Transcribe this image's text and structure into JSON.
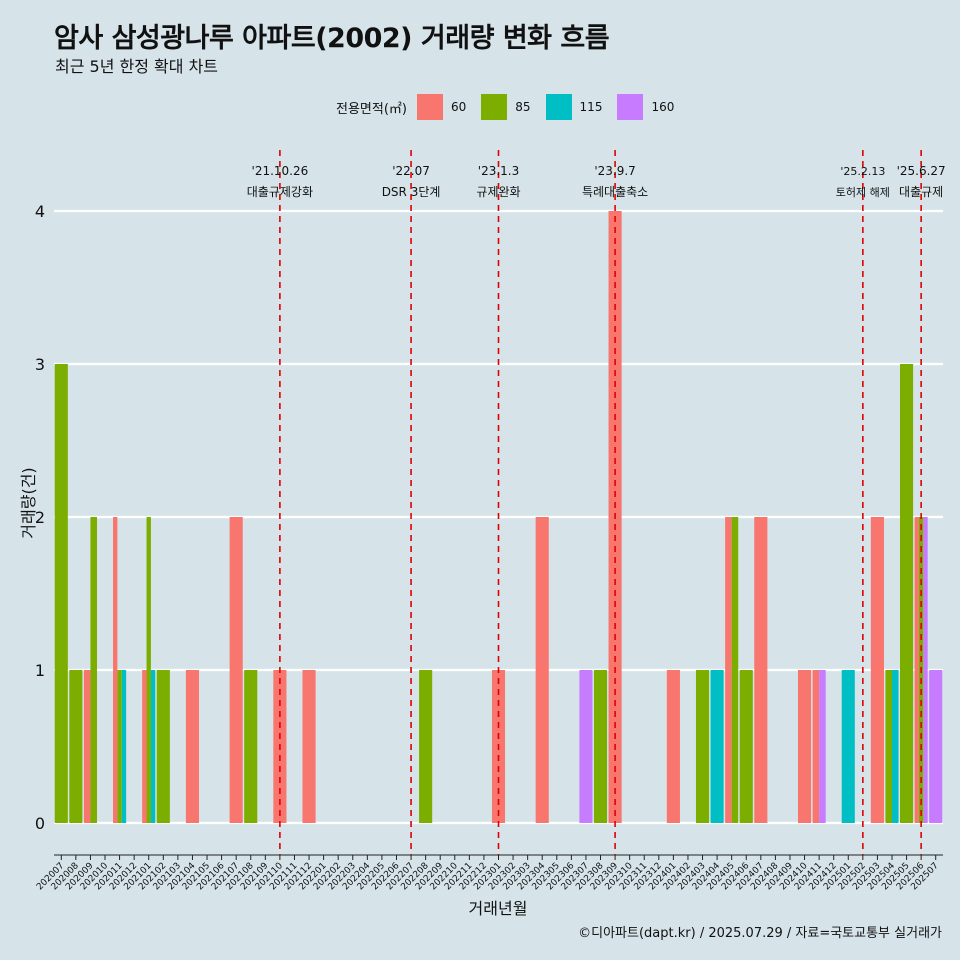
{
  "title": "암사 삼성광나루 아파트(2002) 거래량 변화 흐름",
  "subtitle": "최근 5년 한정 확대 차트",
  "caption": "©디아파트(dapt.kr) / 2025.07.29 / 자료=국토교통부 실거래가",
  "legend": {
    "title": "전용면적(㎡)",
    "position": "top",
    "items": [
      {
        "label": "60",
        "color": "#f8766d"
      },
      {
        "label": "85",
        "color": "#7cae00"
      },
      {
        "label": "115",
        "color": "#00bfc4"
      },
      {
        "label": "160",
        "color": "#c77cff"
      }
    ]
  },
  "chart_data": {
    "type": "bar",
    "stacking": "dodge",
    "title": "암사 삼성광나루 아파트(2002) 거래량 변화 흐름",
    "subtitle": "최근 5년 한정 확대 차트",
    "xlabel": "거래년월",
    "ylabel": "거래량(건)",
    "ylim": [
      0,
      4
    ],
    "yticks": [
      0,
      1,
      2,
      3,
      4
    ],
    "grid": "horizontal",
    "categories": [
      "202007",
      "202008",
      "202009",
      "202010",
      "202011",
      "202012",
      "202101",
      "202102",
      "202103",
      "202104",
      "202105",
      "202106",
      "202107",
      "202108",
      "202109",
      "202110",
      "202111",
      "202112",
      "202201",
      "202202",
      "202203",
      "202204",
      "202205",
      "202206",
      "202207",
      "202208",
      "202209",
      "202210",
      "202211",
      "202212",
      "202301",
      "202302",
      "202303",
      "202304",
      "202305",
      "202306",
      "202307",
      "202308",
      "202309",
      "202310",
      "202311",
      "202312",
      "202401",
      "202402",
      "202403",
      "202404",
      "202405",
      "202406",
      "202407",
      "202408",
      "202409",
      "202410",
      "202411",
      "202412",
      "202501",
      "202502",
      "202503",
      "202504",
      "202505",
      "202506",
      "202507"
    ],
    "series": [
      {
        "name": "60",
        "color": "#f8766d",
        "values": [
          0,
          0,
          1,
          0,
          2,
          0,
          1,
          0,
          0,
          1,
          0,
          0,
          2,
          0,
          0,
          1,
          0,
          1,
          0,
          0,
          0,
          0,
          0,
          0,
          0,
          0,
          0,
          0,
          0,
          0,
          1,
          0,
          0,
          2,
          0,
          0,
          0,
          0,
          4,
          0,
          0,
          0,
          1,
          0,
          0,
          0,
          2,
          0,
          2,
          0,
          0,
          1,
          1,
          0,
          0,
          0,
          2,
          0,
          0,
          2,
          0
        ]
      },
      {
        "name": "85",
        "color": "#7cae00",
        "values": [
          3,
          1,
          2,
          0,
          1,
          0,
          2,
          1,
          0,
          0,
          0,
          0,
          0,
          1,
          0,
          0,
          0,
          0,
          0,
          0,
          0,
          0,
          0,
          0,
          0,
          1,
          0,
          0,
          0,
          0,
          0,
          0,
          0,
          0,
          0,
          0,
          0,
          1,
          0,
          0,
          0,
          0,
          0,
          0,
          1,
          0,
          2,
          1,
          0,
          0,
          0,
          0,
          0,
          0,
          0,
          0,
          0,
          1,
          3,
          2,
          0
        ]
      },
      {
        "name": "115",
        "color": "#00bfc4",
        "values": [
          0,
          0,
          0,
          0,
          1,
          0,
          1,
          0,
          0,
          0,
          0,
          0,
          0,
          0,
          0,
          0,
          0,
          0,
          0,
          0,
          0,
          0,
          0,
          0,
          0,
          0,
          0,
          0,
          0,
          0,
          0,
          0,
          0,
          0,
          0,
          0,
          0,
          0,
          0,
          0,
          0,
          0,
          0,
          0,
          0,
          1,
          0,
          0,
          0,
          0,
          0,
          0,
          0,
          0,
          1,
          0,
          0,
          1,
          0,
          0,
          0
        ]
      },
      {
        "name": "160",
        "color": "#c77cff",
        "values": [
          0,
          0,
          0,
          0,
          0,
          0,
          0,
          0,
          0,
          0,
          0,
          0,
          0,
          0,
          0,
          0,
          0,
          0,
          0,
          0,
          0,
          0,
          0,
          0,
          0,
          0,
          0,
          0,
          0,
          0,
          0,
          0,
          0,
          0,
          0,
          0,
          1,
          0,
          0,
          0,
          0,
          0,
          0,
          0,
          0,
          0,
          0,
          0,
          0,
          0,
          0,
          0,
          1,
          0,
          0,
          0,
          0,
          0,
          0,
          2,
          1
        ]
      }
    ],
    "events": [
      {
        "date": "'21.10.26",
        "label": "대출규제강화",
        "x": "202110"
      },
      {
        "date": "'22.07",
        "label": "DSR 3단계",
        "x": "202207"
      },
      {
        "date": "'23.1.3",
        "label": "규제완화",
        "x": "202301"
      },
      {
        "date": "'23.9.7",
        "label": "특례대출축소",
        "x": "202309"
      },
      {
        "date": "'25.2.13",
        "label": "토허제 해제",
        "x": "202502"
      },
      {
        "date": "'25.6.27",
        "label": "대출규제",
        "x": "202506"
      }
    ]
  }
}
